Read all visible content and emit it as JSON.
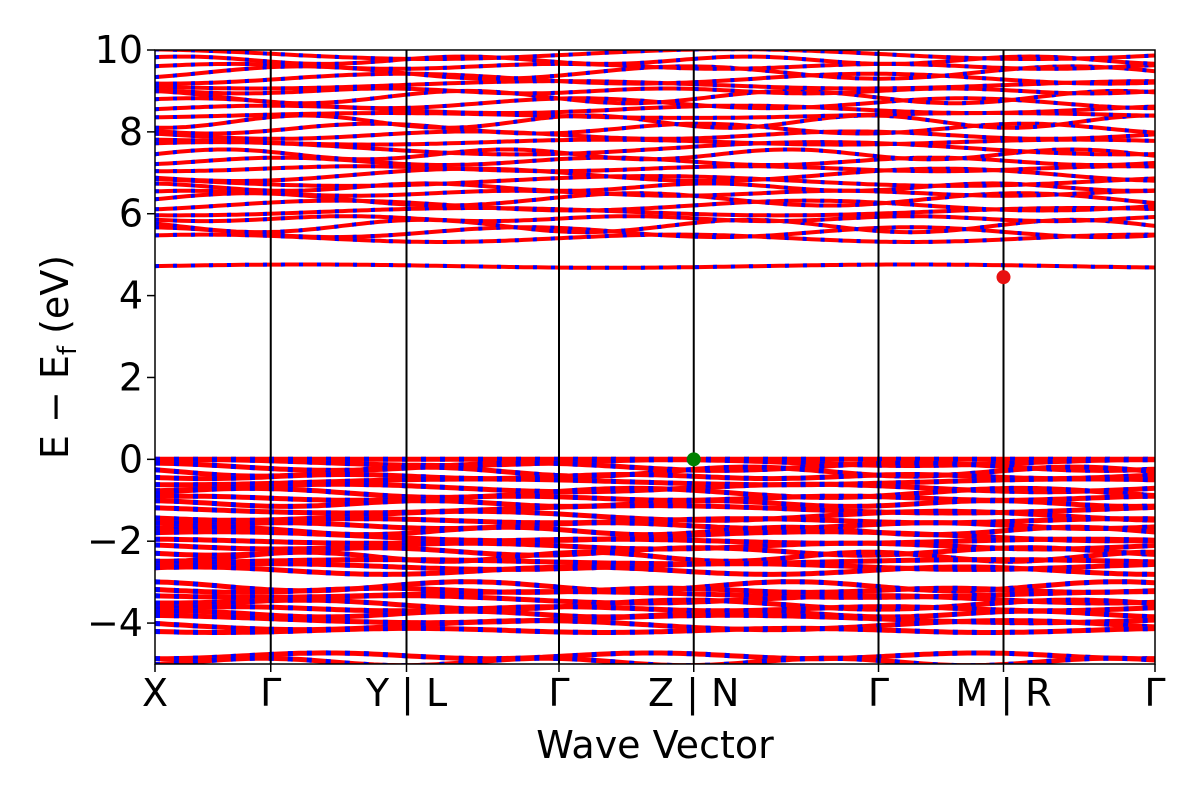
{
  "chart_data": {
    "type": "line",
    "xlabel": "Wave Vector",
    "ylabel": "E − E",
    "ylabel_sub": "f",
    "ylabel_unit": " (eV)",
    "ylim": [
      -5,
      10
    ],
    "y_ticks": [
      {
        "value": 10,
        "label": "10"
      },
      {
        "value": 8,
        "label": "8"
      },
      {
        "value": 6,
        "label": "6"
      },
      {
        "value": 4,
        "label": "4"
      },
      {
        "value": 2,
        "label": "2"
      },
      {
        "value": 0,
        "label": "0"
      },
      {
        "value": -2,
        "label": "−2"
      },
      {
        "value": -4,
        "label": "−4"
      }
    ],
    "xlim": [
      0,
      8
    ],
    "k_ticks": [
      {
        "k": 0,
        "label": "X"
      },
      {
        "k": 0.926,
        "label": "Γ"
      },
      {
        "k": 2.012,
        "label": "Y | L"
      },
      {
        "k": 3.232,
        "label": "Γ"
      },
      {
        "k": 4.31,
        "label": "Z | N"
      },
      {
        "k": 5.788,
        "label": "Γ"
      },
      {
        "k": 6.788,
        "label": "M | R"
      },
      {
        "k": 8,
        "label": "Γ"
      }
    ],
    "grid": false,
    "legend": "none",
    "colors": {
      "spin_up": "#ff0000",
      "spin_down": "#0000ff",
      "vbm": "#008000",
      "cbm": "#e81010",
      "kpath_line": "#000000"
    },
    "special_points": [
      {
        "name": "VBM",
        "k": 4.31,
        "energy": 0.0
      },
      {
        "name": "CBM",
        "k": 6.788,
        "energy": 4.45
      }
    ],
    "valence_bands": [
      0.0,
      -0.08,
      -0.18,
      -0.3,
      -0.42,
      -0.55,
      -0.7,
      -0.82,
      -0.95,
      -1.08,
      -1.22,
      -1.38,
      -1.5,
      -1.62,
      -1.75,
      -1.88,
      -2.0,
      -2.12,
      -2.25,
      -2.38,
      -2.5,
      -2.62,
      -2.72,
      -3.1,
      -3.2,
      -3.3,
      -3.42,
      -3.55,
      -3.65,
      -3.78,
      -3.9,
      -4.05,
      -4.18,
      -4.8,
      -4.95
    ],
    "conduction_bands": [
      4.72,
      5.4,
      5.55,
      5.7,
      5.88,
      6.05,
      6.2,
      6.35,
      6.5,
      6.65,
      6.8,
      6.95,
      7.1,
      7.28,
      7.45,
      7.6,
      7.75,
      7.92,
      8.08,
      8.25,
      8.4,
      8.55,
      8.7,
      8.85,
      9.0,
      9.15,
      9.3,
      9.45,
      9.6,
      9.75,
      9.9
    ]
  }
}
